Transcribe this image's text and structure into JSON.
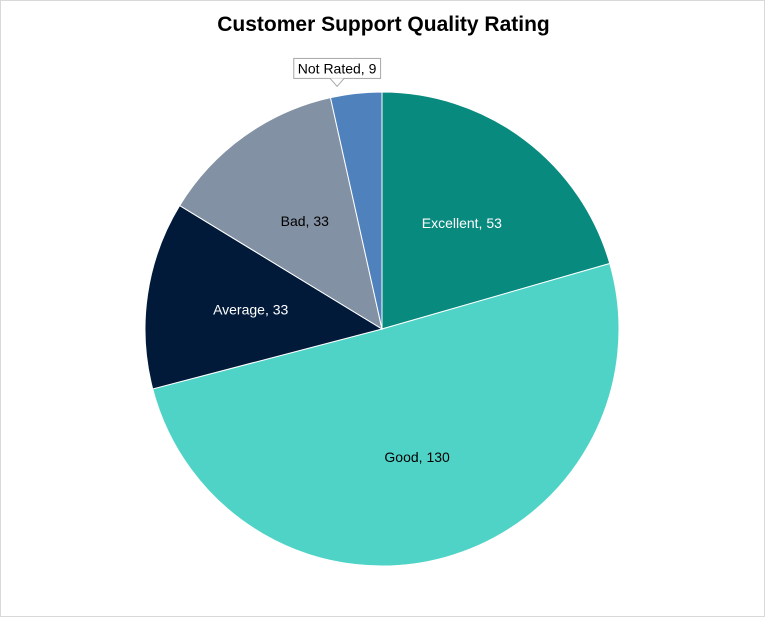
{
  "chart_data": {
    "type": "pie",
    "title": "Customer Support Quality Rating",
    "slices": [
      {
        "label": "Excellent",
        "value": 53,
        "display": "Excellent, 53",
        "color": "#088A7E",
        "text_color": "#ffffff"
      },
      {
        "label": "Good",
        "value": 130,
        "display": "Good, 130",
        "color": "#50D3C7",
        "text_color": "#000000"
      },
      {
        "label": "Average",
        "value": 33,
        "display": "Average, 33",
        "color": "#011A3A",
        "text_color": "#ffffff"
      },
      {
        "label": "Bad",
        "value": 33,
        "display": "Bad, 33",
        "color": "#8291A3",
        "text_color": "#000000"
      },
      {
        "label": "Not Rated",
        "value": 9,
        "display": "Not Rated, 9",
        "color": "#4F81BD",
        "text_color": "#000000"
      }
    ],
    "start": "12 o'clock",
    "direction": "clockwise",
    "legend": "none"
  }
}
